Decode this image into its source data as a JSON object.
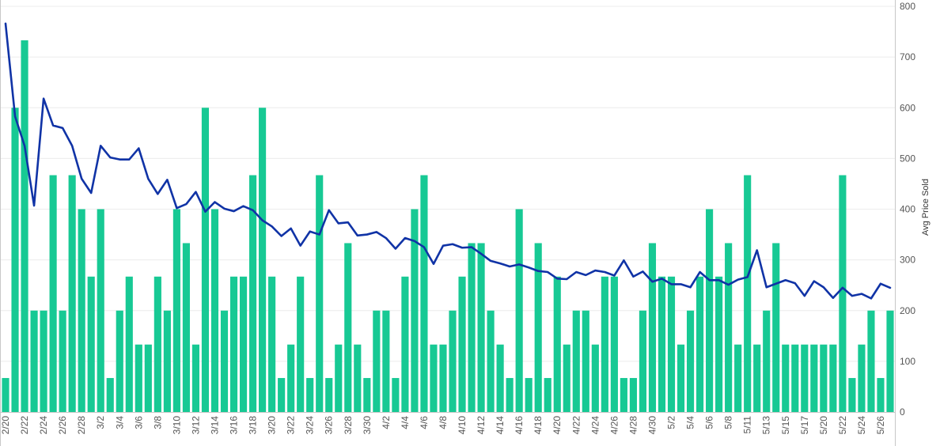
{
  "chart_data": {
    "type": "bar",
    "title": "",
    "xlabel": "",
    "ylabel": "Avg Price Sold",
    "ylim": [
      0,
      800
    ],
    "y_ticks": [
      0,
      100,
      200,
      300,
      400,
      500,
      600,
      700,
      800
    ],
    "grid": true,
    "legend": "none",
    "x_tick_labels": [
      "2/20",
      "2/22",
      "2/24",
      "2/26",
      "2/28",
      "3/2",
      "3/4",
      "3/6",
      "3/8",
      "3/10",
      "3/12",
      "3/14",
      "3/16",
      "3/18",
      "3/20",
      "3/22",
      "3/24",
      "3/26",
      "3/28",
      "3/30",
      "4/2",
      "4/4",
      "4/6",
      "4/8",
      "4/10",
      "4/12",
      "4/14",
      "4/16",
      "4/18",
      "4/20",
      "4/22",
      "4/24",
      "4/26",
      "4/28",
      "4/30",
      "5/2",
      "5/4",
      "5/6",
      "5/8",
      "5/11",
      "5/13",
      "5/15",
      "5/17",
      "5/20",
      "5/22",
      "5/24",
      "5/26"
    ],
    "colors": {
      "bar": "#17c994",
      "line": "#1033a6",
      "grid": "#ececec",
      "axis": "#c8c8c8"
    },
    "series": [
      {
        "type": "bar",
        "values": [
          67,
          600,
          733,
          200,
          200,
          467,
          200,
          467,
          400,
          267,
          400,
          67,
          200,
          267,
          133,
          133,
          267,
          200,
          400,
          333,
          133,
          600,
          400,
          200,
          267,
          267,
          467,
          600,
          267,
          67,
          133,
          267,
          67,
          467,
          67,
          133,
          333,
          133,
          67,
          200,
          200,
          67,
          267,
          400,
          467,
          133,
          133,
          200,
          267,
          333,
          333,
          200,
          133,
          67,
          400,
          67,
          333,
          67,
          267,
          133,
          200,
          200,
          133,
          267,
          267,
          67,
          67,
          200,
          333,
          267,
          267,
          133,
          200,
          267,
          400,
          267,
          333,
          133,
          467,
          133,
          200,
          333,
          133,
          133,
          133,
          133,
          133,
          133,
          467,
          67,
          133,
          200,
          67,
          200
        ]
      },
      {
        "type": "line",
        "values": [
          766,
          583,
          525,
          407,
          618,
          565,
          560,
          525,
          460,
          432,
          525,
          502,
          498,
          498,
          520,
          460,
          430,
          458,
          402,
          410,
          434,
          395,
          414,
          401,
          396,
          406,
          398,
          378,
          366,
          347,
          362,
          328,
          356,
          350,
          398,
          372,
          374,
          348,
          350,
          355,
          343,
          322,
          343,
          337,
          325,
          292,
          328,
          331,
          324,
          325,
          312,
          298,
          293,
          287,
          291,
          285,
          278,
          276,
          263,
          262,
          276,
          270,
          279,
          276,
          269,
          299,
          267,
          277,
          257,
          263,
          252,
          252,
          246,
          276,
          260,
          260,
          251,
          261,
          266,
          319,
          246,
          253,
          260,
          254,
          229,
          258,
          246,
          225,
          245,
          229,
          233,
          224,
          253,
          245
        ]
      }
    ]
  }
}
